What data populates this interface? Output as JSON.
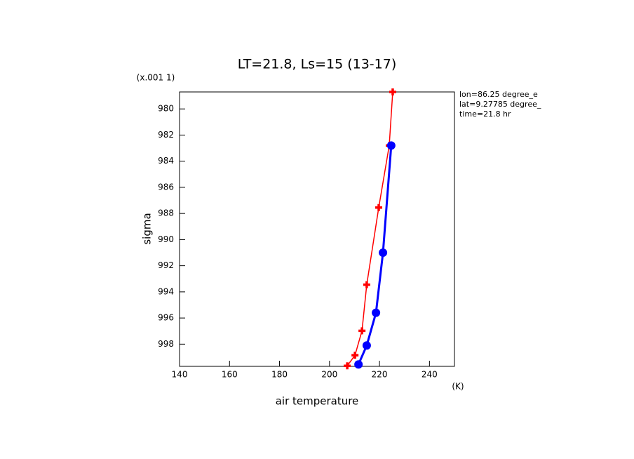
{
  "chart_data": {
    "type": "line",
    "title": "LT=21.8, Ls=15 (13-17)",
    "x_label": "air temperature",
    "y_label": "sigma",
    "y_unit_label": "(x.001 1)",
    "x_unit_label": "(K)",
    "annotations": [
      "lon=86.25 degree_e",
      "lat=9.27785 degree_",
      "time=21.8 hr"
    ],
    "xlim": [
      140,
      250
    ],
    "xticks": [
      140,
      160,
      180,
      200,
      220,
      240
    ],
    "ylim": [
      978.7,
      999.7
    ],
    "yticks": [
      980,
      982,
      984,
      986,
      988,
      990,
      992,
      994,
      996,
      998
    ],
    "y_inverted": true,
    "series": [
      {
        "color": "#ff0000",
        "marker": "plus",
        "x": [
          225.3,
          223.9,
          219.7,
          214.9,
          213.0,
          210.2,
          207.1
        ],
        "values": [
          978.7,
          982.8,
          987.55,
          993.45,
          996.98,
          998.85,
          999.66
        ]
      },
      {
        "color": "#0000ff",
        "marker": "circle",
        "x": [
          224.7,
          221.4,
          218.6,
          214.9,
          211.6
        ],
        "values": [
          982.8,
          991.0,
          995.6,
          998.1,
          999.55
        ]
      }
    ]
  }
}
